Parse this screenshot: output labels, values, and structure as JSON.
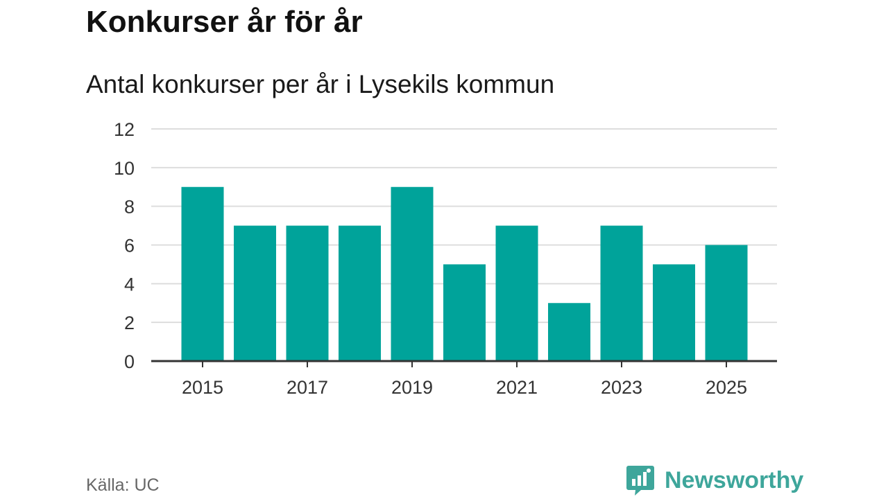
{
  "header": {
    "title": "Konkurser år för år",
    "subtitle": "Antal konkurser per år i Lysekils kommun"
  },
  "footer": {
    "source": "Källa: UC",
    "brand": "Newsworthy",
    "brand_icon": "bar-chart-icon"
  },
  "colors": {
    "bar": "#00a39a",
    "brand": "#3ea69b",
    "grid": "#dddddd",
    "axis": "#333333"
  },
  "chart_data": {
    "type": "bar",
    "title": "Konkurser år för år",
    "subtitle": "Antal konkurser per år i Lysekils kommun",
    "categories": [
      "2015",
      "2016",
      "2017",
      "2018",
      "2019",
      "2020",
      "2021",
      "2022",
      "2023",
      "2024",
      "2025"
    ],
    "values": [
      9,
      7,
      7,
      7,
      9,
      5,
      7,
      3,
      7,
      5,
      6
    ],
    "x_tick_labels": [
      "2015",
      "2017",
      "2019",
      "2021",
      "2023",
      "2025"
    ],
    "y_ticks": [
      0,
      2,
      4,
      6,
      8,
      10,
      12
    ],
    "ylim": [
      0,
      12
    ],
    "xlabel": "",
    "ylabel": "",
    "grid": true,
    "legend": "none"
  }
}
